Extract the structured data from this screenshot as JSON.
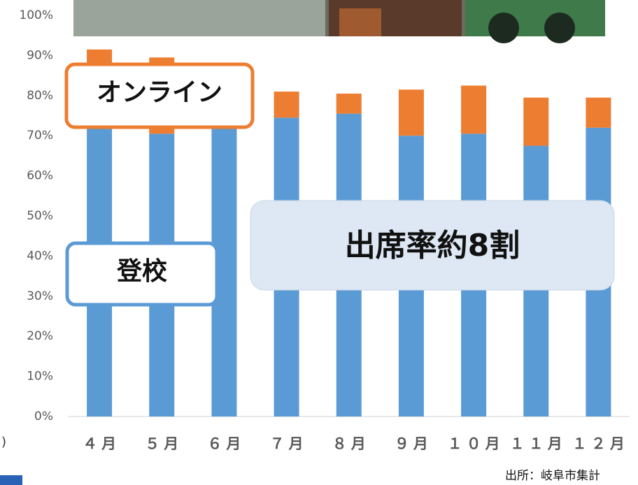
{
  "chart_data": {
    "type": "stacked-bar",
    "categories": [
      "４月",
      "５月",
      "６月",
      "７月",
      "８月",
      "９月",
      "１０月",
      "１１月",
      "１２月"
    ],
    "series": [
      {
        "name": "登校",
        "color": "#5b9bd5",
        "values": [
          80,
          70.5,
          78,
          74.5,
          75.5,
          70,
          70.5,
          67.5,
          72
        ]
      },
      {
        "name": "オンライン",
        "color": "#ed7d31",
        "values": [
          11.5,
          19,
          6,
          6.5,
          5,
          11.5,
          12,
          12,
          7.5
        ]
      }
    ],
    "ylim": [
      0,
      100
    ],
    "yticks": [
      {
        "value": 0,
        "label": "0%"
      },
      {
        "value": 10,
        "label": "10%"
      },
      {
        "value": 20,
        "label": "20%"
      },
      {
        "value": 30,
        "label": "30%"
      },
      {
        "value": 40,
        "label": "40%"
      },
      {
        "value": 50,
        "label": "50%"
      },
      {
        "value": 60,
        "label": "60%"
      },
      {
        "value": 70,
        "label": "70%"
      },
      {
        "value": 80,
        "label": "80%"
      },
      {
        "value": 90,
        "label": "90%"
      },
      {
        "value": 100,
        "label": "100%"
      }
    ],
    "annotation": "出席率約8割",
    "source": "出所：岐阜市集計",
    "fragment": ")"
  }
}
